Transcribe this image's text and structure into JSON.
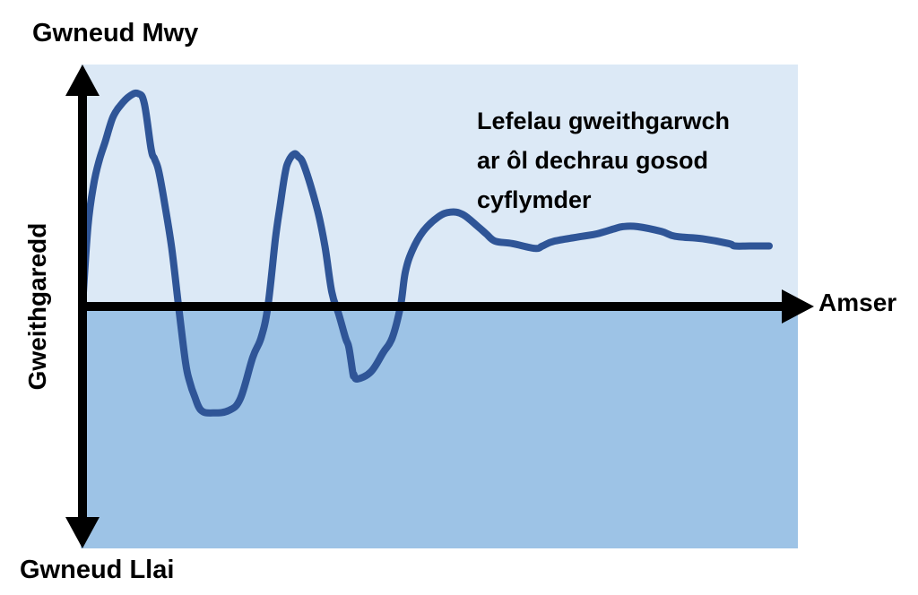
{
  "colors": {
    "upper_region": "#dce9f6",
    "lower_region": "#9dc3e6",
    "line": "#2f5597",
    "axis": "#000000"
  },
  "chart_data": {
    "type": "line",
    "title": "",
    "xlabel": "Amser",
    "ylabel": "Gweithgaredd",
    "y_top_label": "Gwneud Mwy",
    "y_bottom_label": "Gwneud Llai",
    "annotation": [
      "Lefelau gweithgarwch",
      "ar ôl dechrau gosod",
      "cyflymder"
    ],
    "xlim": [
      0,
      100
    ],
    "ylim": [
      -100,
      100
    ],
    "grid": false,
    "legend": "none",
    "series": [
      {
        "values_note": "",
        "x": [
          0,
          0.8,
          1.6,
          2.4,
          3.3,
          4.4,
          5.5,
          6.9,
          8.1,
          9.0,
          10.0,
          10.5,
          11.1,
          12.0,
          13.0,
          14.0,
          15.0,
          15.6,
          16.3,
          17.3,
          19.0,
          21.3,
          23.0,
          24.8,
          26.0,
          27.0,
          28.1,
          28.8,
          29.5,
          30.0,
          30.8,
          31.4,
          32.3,
          34.2,
          35.3,
          36.3,
          37.3,
          38.3,
          38.8,
          39.4,
          39.5,
          40.0,
          42.0,
          43.8,
          45.1,
          46.3,
          47.0,
          48.0,
          49.6,
          51.8,
          53.6,
          55.4,
          57.6,
          58.8,
          60.1,
          62.6,
          65.9,
          67.0,
          68.7,
          72.8,
          74.9,
          77.3,
          78.7,
          80.8,
          84.3,
          86.3,
          90.3,
          94.1,
          95.0,
          97.1,
          100
        ],
        "y": [
          0,
          33,
          50,
          60,
          68,
          78,
          83,
          87,
          88,
          84,
          65,
          61,
          56,
          42,
          24,
          0,
          -23,
          -31,
          -37,
          -43,
          -44,
          -43,
          -38,
          -21,
          -13,
          0,
          28,
          42,
          55,
          60,
          63,
          62,
          58,
          40,
          25,
          6,
          -3,
          -13,
          -17,
          -28,
          -28,
          -30,
          -27,
          -19,
          -13,
          0,
          14,
          23,
          31,
          37,
          39,
          38,
          33,
          30,
          27,
          26,
          24,
          25,
          27,
          29,
          30,
          32,
          33,
          33,
          31,
          29,
          28,
          26,
          25,
          25,
          25
        ]
      }
    ]
  }
}
